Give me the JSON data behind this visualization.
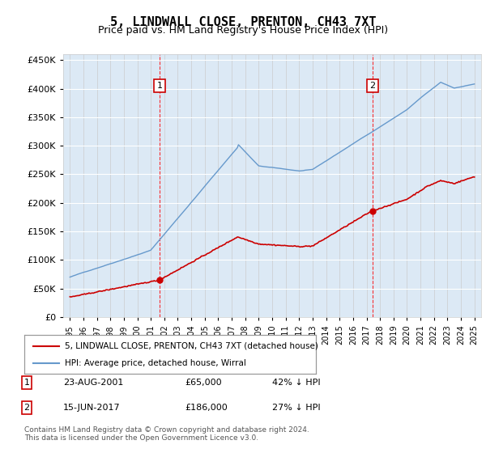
{
  "title": "5, LINDWALL CLOSE, PRENTON, CH43 7XT",
  "subtitle": "Price paid vs. HM Land Registry's House Price Index (HPI)",
  "legend_property": "5, LINDWALL CLOSE, PRENTON, CH43 7XT (detached house)",
  "legend_hpi": "HPI: Average price, detached house, Wirral",
  "footnote": "Contains HM Land Registry data © Crown copyright and database right 2024.\nThis data is licensed under the Open Government Licence v3.0.",
  "sale_points": [
    {
      "label": "1",
      "date_str": "23-AUG-2001",
      "date_x": 2001.64,
      "price": 65000,
      "note": "42% ↓ HPI"
    },
    {
      "label": "2",
      "date_str": "15-JUN-2017",
      "date_x": 2017.45,
      "price": 186000,
      "note": "27% ↓ HPI"
    }
  ],
  "hpi_color": "#6699cc",
  "property_color": "#cc0000",
  "sale_point_color": "#cc0000",
  "vline_color": "#ff0000",
  "background_color": "#dce9f5",
  "plot_bg": "#dce9f5",
  "ylim": [
    0,
    460000
  ],
  "yticks": [
    0,
    50000,
    100000,
    150000,
    200000,
    250000,
    300000,
    350000,
    400000,
    450000
  ],
  "xlim": [
    1994.5,
    2025.5
  ],
  "xtick_years": [
    1995,
    1996,
    1997,
    1998,
    1999,
    2000,
    2001,
    2002,
    2003,
    2004,
    2005,
    2006,
    2007,
    2008,
    2009,
    2010,
    2011,
    2012,
    2013,
    2014,
    2015,
    2016,
    2017,
    2018,
    2019,
    2020,
    2021,
    2022,
    2023,
    2024,
    2025
  ]
}
